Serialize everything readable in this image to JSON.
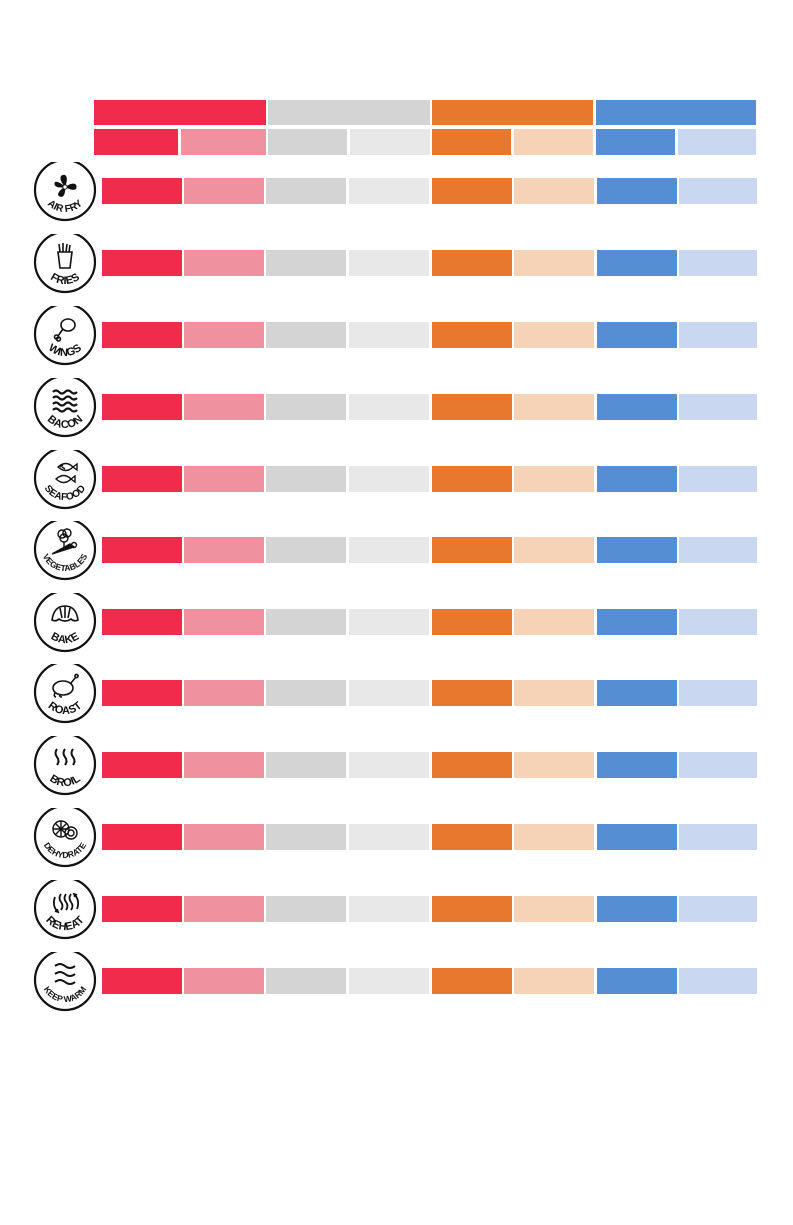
{
  "colors": {
    "red": "#f12b4b",
    "pink": "#f0919f",
    "gray": "#d4d4d4",
    "light_gray": "#e8e8e8",
    "orange": "#e8782e",
    "peach": "#f6d3b6",
    "blue": "#568ed4",
    "light_blue": "#c9d7f0"
  },
  "header": {
    "groups": [
      {
        "color": "red"
      },
      {
        "color": "gray"
      },
      {
        "color": "orange"
      },
      {
        "color": "blue"
      }
    ],
    "subcolumns": [
      "red",
      "pink",
      "gray",
      "light_gray",
      "orange",
      "peach",
      "blue",
      "light_blue"
    ]
  },
  "functions": [
    {
      "label": "AIR FRY",
      "icon": "fan-icon"
    },
    {
      "label": "FRIES",
      "icon": "fries-icon"
    },
    {
      "label": "WINGS",
      "icon": "chicken-wing-icon"
    },
    {
      "label": "BACON",
      "icon": "bacon-icon"
    },
    {
      "label": "SEAFOOD",
      "icon": "fish-icon"
    },
    {
      "label": "VEGETABLES",
      "icon": "vegetables-icon"
    },
    {
      "label": "BAKE",
      "icon": "croissant-icon"
    },
    {
      "label": "ROAST",
      "icon": "roast-chicken-icon"
    },
    {
      "label": "BROIL",
      "icon": "heat-waves-icon"
    },
    {
      "label": "DEHYDRATE",
      "icon": "dried-slices-icon"
    },
    {
      "label": "REHEAT",
      "icon": "reheat-arrows-icon"
    },
    {
      "label": "KEEP WARM",
      "icon": "warm-waves-icon"
    }
  ]
}
